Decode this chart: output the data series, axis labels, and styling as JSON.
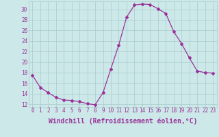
{
  "x": [
    0,
    1,
    2,
    3,
    4,
    5,
    6,
    7,
    8,
    9,
    10,
    11,
    12,
    13,
    14,
    15,
    16,
    17,
    18,
    19,
    20,
    21,
    22,
    23
  ],
  "y": [
    17.5,
    15.2,
    14.2,
    13.3,
    12.8,
    12.7,
    12.5,
    12.1,
    11.9,
    14.2,
    18.7,
    23.2,
    28.5,
    30.8,
    31.0,
    30.9,
    30.1,
    29.2,
    25.8,
    23.5,
    20.8,
    18.3,
    18.0,
    17.9
  ],
  "line_color": "#993399",
  "marker": "D",
  "marker_size": 2.0,
  "bg_color": "#cce8e8",
  "grid_color": "#aacccc",
  "xlabel": "Windchill (Refroidissement éolien,°C)",
  "xlabel_color": "#993399",
  "ylabel_ticks": [
    12,
    14,
    16,
    18,
    20,
    22,
    24,
    26,
    28,
    30
  ],
  "ylim": [
    11.5,
    31.5
  ],
  "xlim": [
    -0.5,
    23.5
  ],
  "xticks": [
    0,
    1,
    2,
    3,
    4,
    5,
    6,
    7,
    8,
    9,
    10,
    11,
    12,
    13,
    14,
    15,
    16,
    17,
    18,
    19,
    20,
    21,
    22,
    23
  ],
  "tick_color": "#993399",
  "tick_fontsize": 5.5,
  "xlabel_fontsize": 7.0,
  "linewidth": 0.9
}
